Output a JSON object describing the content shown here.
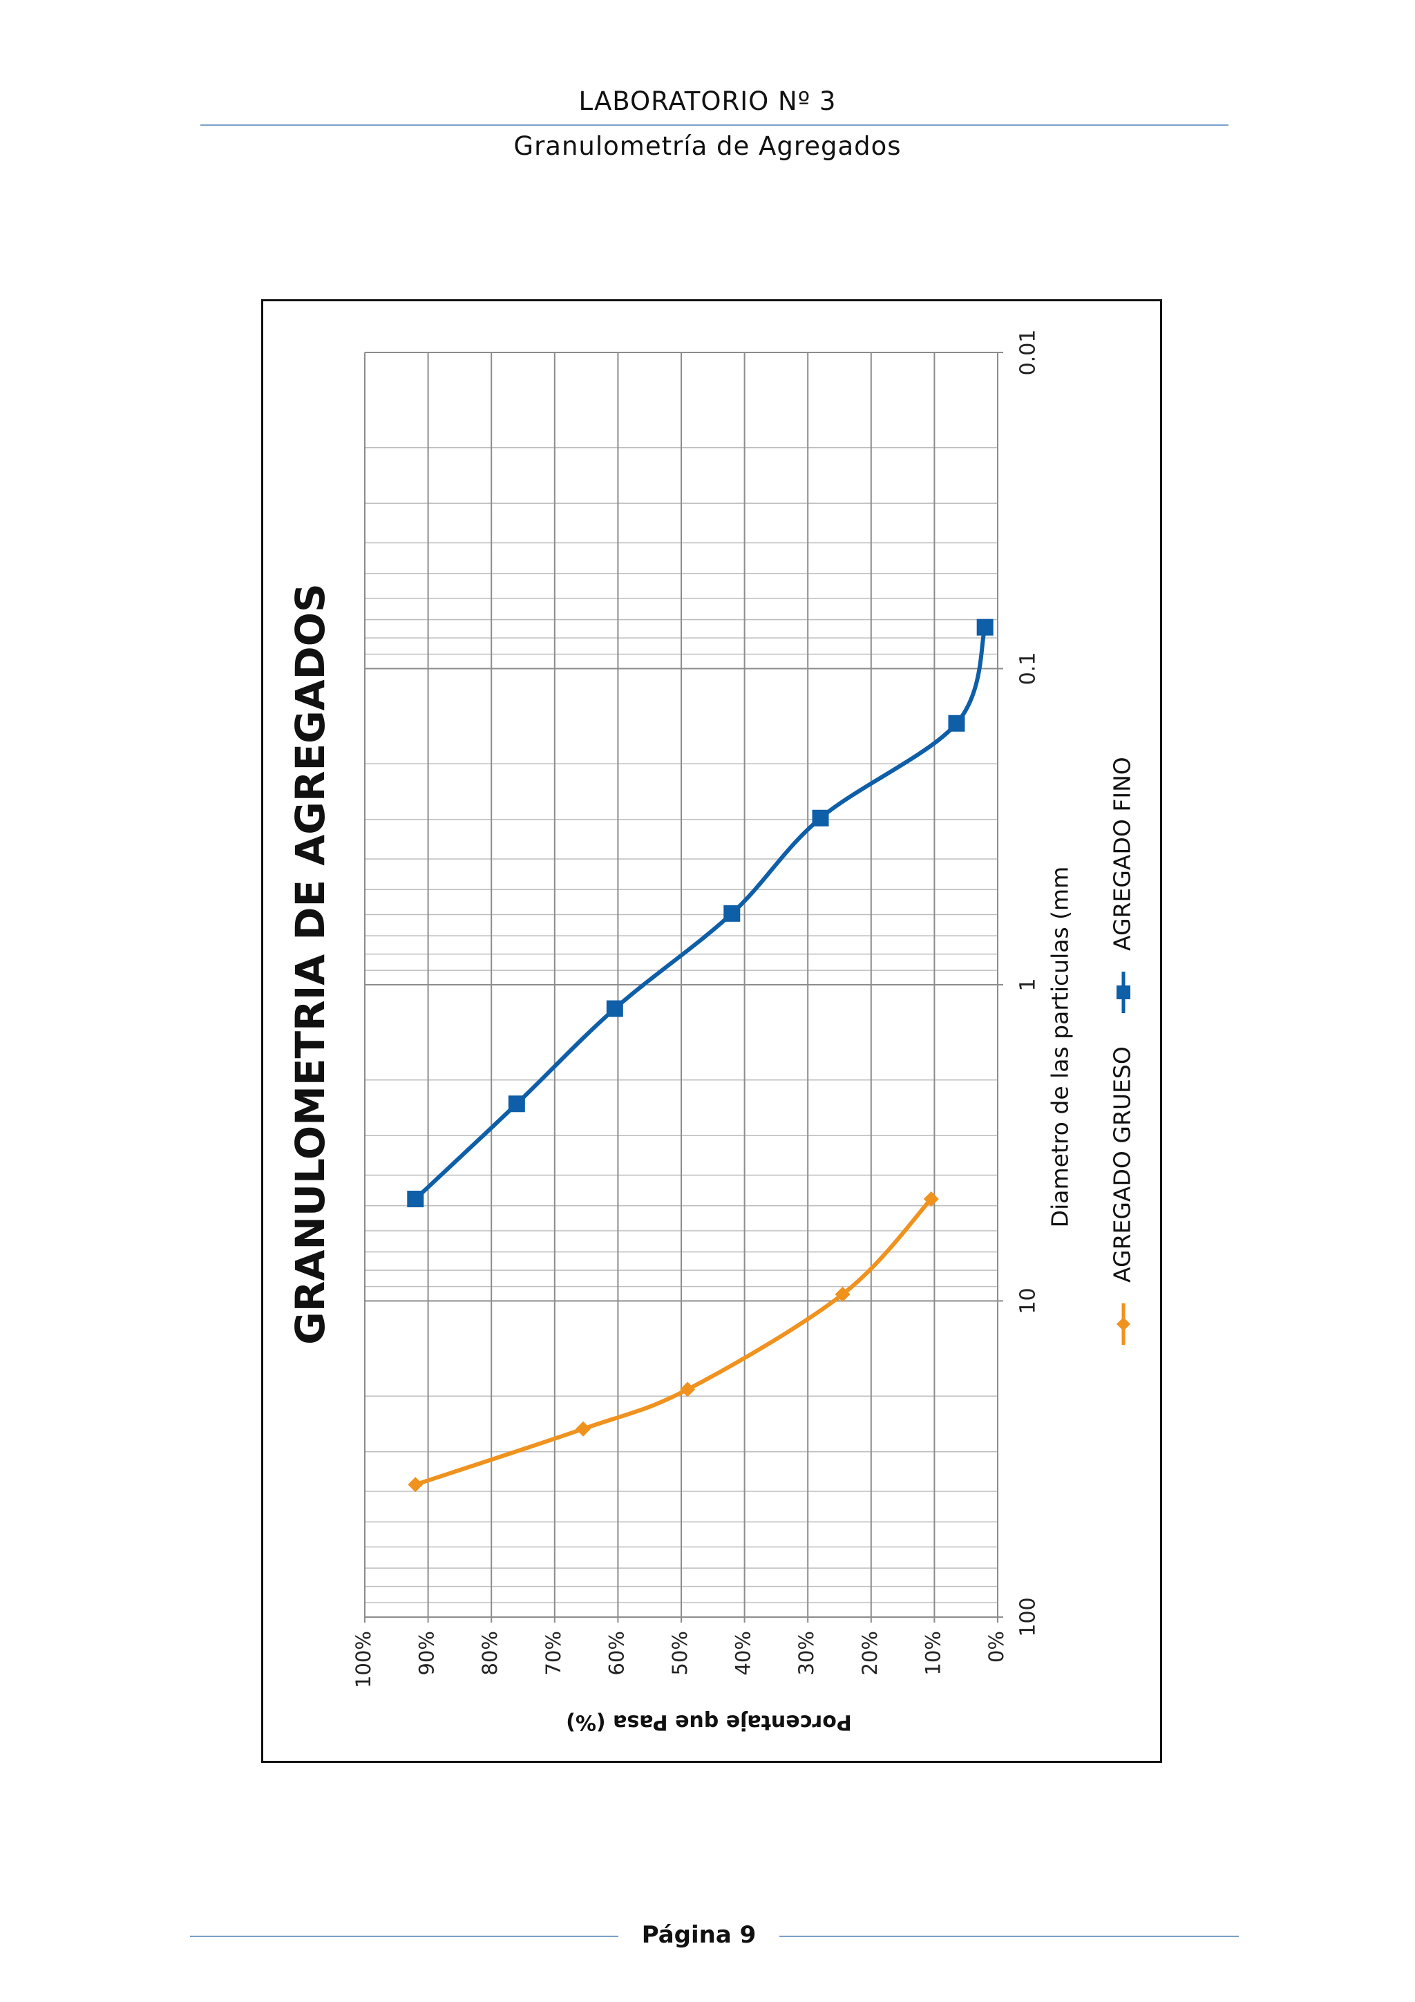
{
  "header": {
    "title": "LABORATORIO Nº 3",
    "subtitle": "Granulometría de Agregados"
  },
  "footer": {
    "page_label": "Página 9"
  },
  "chart_data": {
    "type": "line",
    "title": "GRANULOMETRIA DE AGREGADOS",
    "xlabel": "Diametro de las particulas (mm",
    "ylabel": "Porcentaje que Pasa (%)",
    "x_scale": "log",
    "x_reversed": true,
    "xlim": [
      100,
      0.01
    ],
    "ylim": [
      0,
      1
    ],
    "x_ticks": [
      {
        "value": 100,
        "label": "100"
      },
      {
        "value": 10,
        "label": "10"
      },
      {
        "value": 1,
        "label": "1"
      },
      {
        "value": 0.1,
        "label": "0.1"
      },
      {
        "value": 0.01,
        "label": "0.01"
      }
    ],
    "y_ticks": [
      {
        "value": 0,
        "label": "0%"
      },
      {
        "value": 0.1,
        "label": "10%"
      },
      {
        "value": 0.2,
        "label": "20%"
      },
      {
        "value": 0.3,
        "label": "30%"
      },
      {
        "value": 0.4,
        "label": "40%"
      },
      {
        "value": 0.5,
        "label": "50%"
      },
      {
        "value": 0.6,
        "label": "60%"
      },
      {
        "value": 0.7,
        "label": "70%"
      },
      {
        "value": 0.8,
        "label": "80%"
      },
      {
        "value": 0.9,
        "label": "90%"
      },
      {
        "value": 1,
        "label": "100%"
      }
    ],
    "grid": true,
    "orientation": "rotated 90° counter-clockwise",
    "legend": "bottom",
    "series": [
      {
        "name": "AGREGADO GRUESO",
        "color": "#f0921e",
        "marker": "diamond",
        "x": [
          38.1,
          25.4,
          19.05,
          9.525,
          4.76
        ],
        "y": [
          0.92,
          0.655,
          0.49,
          0.245,
          0.105
        ]
      },
      {
        "name": "AGREGADO FINO",
        "color": "#0e5ea8",
        "marker": "square",
        "x": [
          4.76,
          2.38,
          1.19,
          0.595,
          0.297,
          0.149,
          0.074
        ],
        "y": [
          0.92,
          0.76,
          0.605,
          0.42,
          0.28,
          0.065,
          0.02
        ]
      }
    ]
  }
}
